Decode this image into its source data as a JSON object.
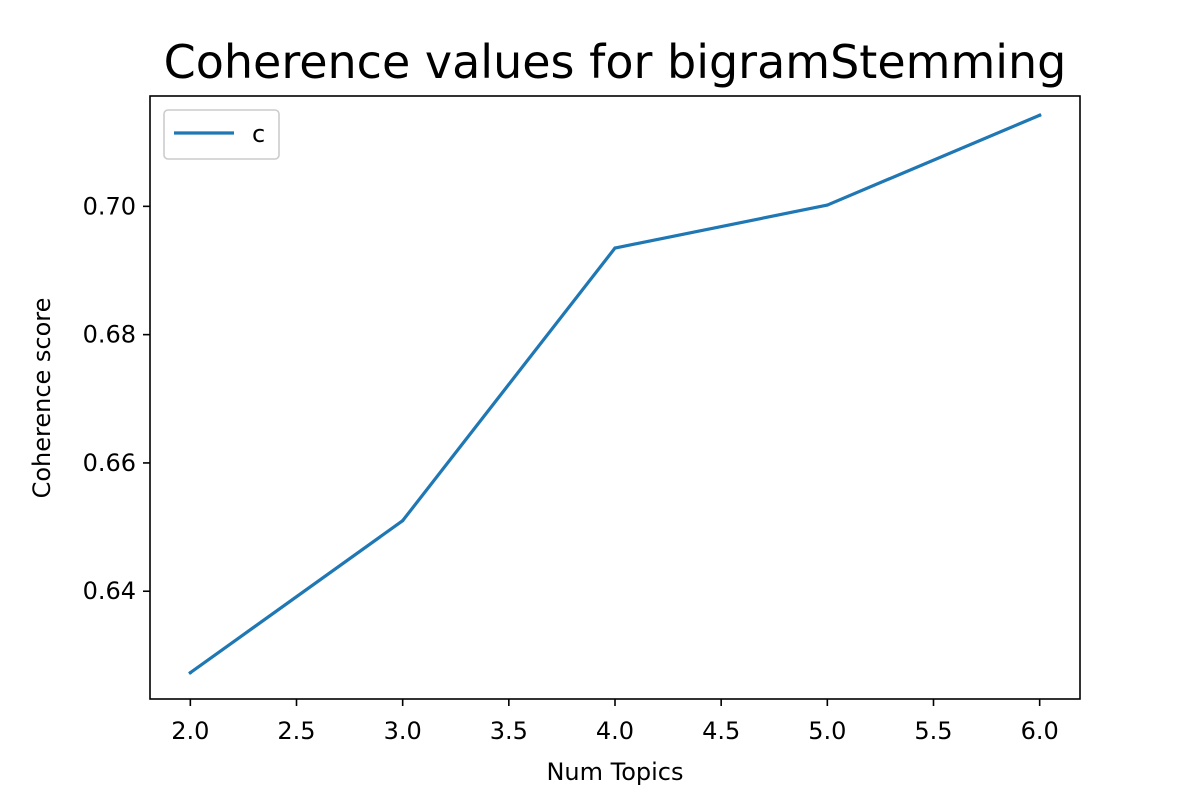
{
  "chart_data": {
    "type": "line",
    "title": "Coherence values for bigramStemming",
    "xlabel": "Num Topics",
    "ylabel": "Coherence score",
    "xlim": [
      1.81,
      6.19
    ],
    "ylim": [
      0.6232,
      0.7172
    ],
    "xticks": [
      2.0,
      2.5,
      3.0,
      3.5,
      4.0,
      4.5,
      5.0,
      5.5,
      6.0
    ],
    "xtick_labels": [
      "2.0",
      "2.5",
      "3.0",
      "3.5",
      "4.0",
      "4.5",
      "5.0",
      "5.5",
      "6.0"
    ],
    "yticks": [
      0.64,
      0.66,
      0.68,
      0.7
    ],
    "ytick_labels": [
      "0.64",
      "0.66",
      "0.68",
      "0.70"
    ],
    "grid": false,
    "legend_position": "top-left",
    "series": [
      {
        "name": "c",
        "color": "#1f77b4",
        "x": [
          2,
          3,
          4,
          5,
          6
        ],
        "y": [
          0.6273,
          0.651,
          0.6935,
          0.7002,
          0.7142
        ]
      }
    ]
  }
}
